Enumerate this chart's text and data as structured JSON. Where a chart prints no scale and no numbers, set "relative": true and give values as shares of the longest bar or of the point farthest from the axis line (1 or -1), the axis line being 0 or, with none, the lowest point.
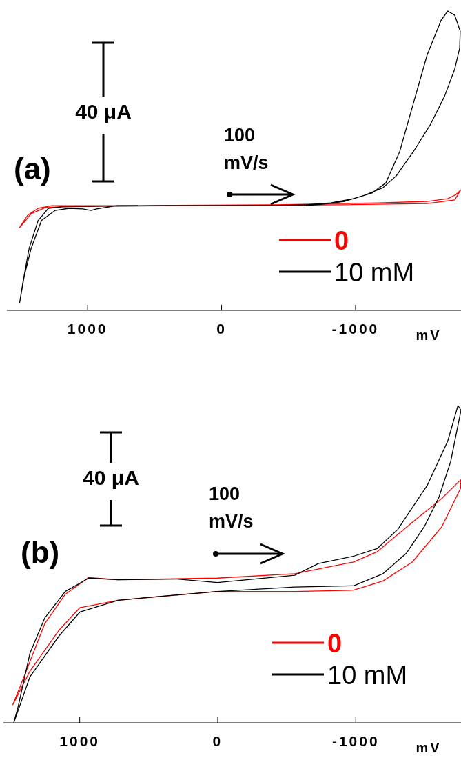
{
  "chart_data": [
    {
      "type": "line",
      "relative": true,
      "xlabel": "mV",
      "xlim": [
        1600,
        -1790
      ],
      "xticks": [
        1000,
        0,
        -1000
      ],
      "grid": false,
      "legend": "bottom right",
      "marker": "none",
      "line_style": "solid",
      "annotations": [
        "(a)",
        "40 μA",
        "100 mV/s"
      ],
      "series": [
        {
          "name": "0",
          "color": "#ff0000",
          "x": [
            1506,
            1445,
            1367,
            1265,
            622,
            -406,
            -1177,
            -1537,
            -1691,
            -1753,
            -1789,
            -1743,
            -1537,
            -920,
            108,
            1136,
            1316,
            1419,
            1506
          ],
          "values": [
            0.276,
            0.318,
            0.341,
            0.35,
            0.35,
            0.353,
            0.359,
            0.364,
            0.373,
            0.387,
            0.403,
            0.369,
            0.357,
            0.353,
            0.35,
            0.348,
            0.343,
            0.323,
            0.276
          ]
        },
        {
          "name": "10 mM",
          "color": "#000000",
          "x": [
            622,
            776,
            931,
            972,
            1033,
            1136,
            1239,
            1342,
            1419,
            1470,
            1506,
            1481,
            1434,
            1367,
            1290,
            1188,
            879,
            365,
            0,
            -406,
            -632,
            -817,
            -987,
            -1126,
            -1229,
            -1332,
            -1434,
            -1537,
            -1640,
            -1691,
            -1743,
            -1784,
            -1780,
            -1743,
            -1666,
            -1563,
            -1434,
            -1306,
            -1208,
            -1074,
            -920,
            -766,
            -632
          ],
          "values": [
            0.35,
            0.35,
            0.339,
            0.334,
            0.339,
            0.341,
            0.334,
            0.3,
            0.207,
            0.115,
            0.023,
            0.092,
            0.207,
            0.3,
            0.341,
            0.346,
            0.348,
            0.35,
            0.35,
            0.35,
            0.353,
            0.359,
            0.373,
            0.392,
            0.426,
            0.53,
            0.691,
            0.853,
            0.968,
            1,
            0.986,
            0.933,
            0.876,
            0.806,
            0.714,
            0.622,
            0.53,
            0.449,
            0.41,
            0.385,
            0.364,
            0.355,
            0.35
          ]
        }
      ]
    },
    {
      "type": "line",
      "relative": true,
      "xlabel": "mV",
      "xlim": [
        1550,
        -1765
      ],
      "xticks": [
        1000,
        0,
        -1000
      ],
      "grid": false,
      "legend": "bottom right",
      "marker": "none",
      "line_style": "solid",
      "annotations": [
        "(b)",
        "40 μA",
        "100 mV/s"
      ],
      "series": [
        {
          "name": "0",
          "color": "#ff0000",
          "x": [
            0,
            -561,
            -987,
            -1157,
            -1413,
            -1626,
            -1765,
            -1762,
            -1626,
            -1413,
            -1200,
            -987,
            -561,
            0,
            719,
            996,
            1145,
            1358,
            1483,
            1401,
            1251,
            1102,
            932,
            719,
            0
          ],
          "values": [
            0.456,
            0.47,
            0.507,
            0.539,
            0.632,
            0.707,
            0.767,
            0.739,
            0.618,
            0.507,
            0.447,
            0.418,
            0.414,
            0.414,
            0.386,
            0.363,
            0.293,
            0.163,
            0.056,
            0.145,
            0.312,
            0.405,
            0.458,
            0.451,
            0.456
          ]
        },
        {
          "name": "10 mM",
          "color": "#000000",
          "x": [
            0,
            -561,
            -731,
            -987,
            -1157,
            -1306,
            -1520,
            -1669,
            -1743,
            -1765,
            -1690,
            -1605,
            -1499,
            -1370,
            -1200,
            -987,
            -561,
            0,
            505,
            719,
            996,
            1145,
            1358,
            1475,
            1443,
            1358,
            1251,
            1102,
            932,
            719,
            292,
            0
          ],
          "values": [
            0.442,
            0.465,
            0.502,
            0.525,
            0.549,
            0.609,
            0.748,
            0.888,
            1,
            0.985,
            0.823,
            0.711,
            0.618,
            0.535,
            0.47,
            0.432,
            0.428,
            0.414,
            0.395,
            0.386,
            0.349,
            0.275,
            0.145,
            0,
            0.052,
            0.219,
            0.33,
            0.414,
            0.456,
            0.451,
            0.453,
            0.442
          ]
        }
      ]
    }
  ]
}
